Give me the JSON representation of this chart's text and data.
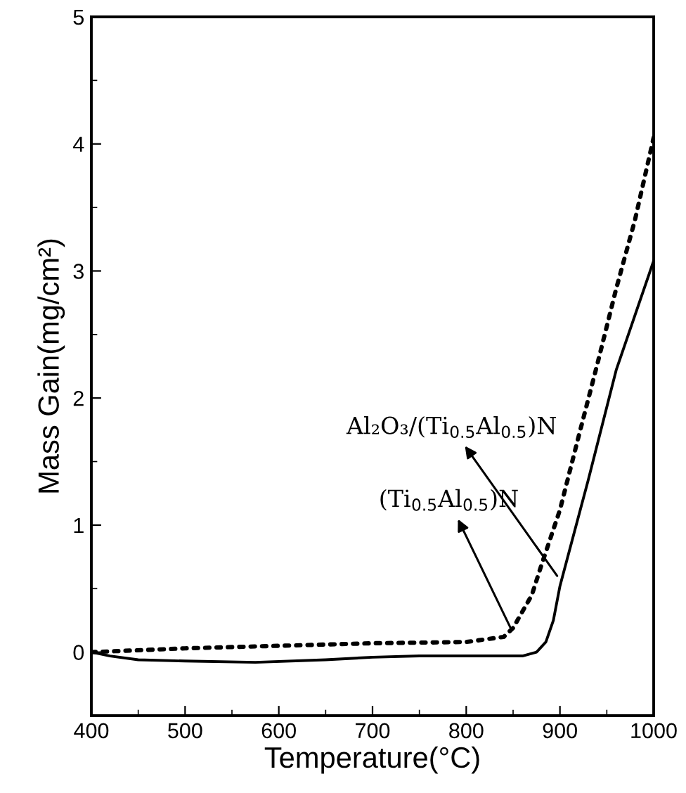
{
  "chart_data": {
    "type": "line",
    "xlabel": "Temperature(°C)",
    "ylabel": "Mass Gain(mg/cm²)",
    "xlim": [
      400,
      1000
    ],
    "xticks": [
      400,
      500,
      600,
      700,
      800,
      900,
      1000
    ],
    "ylim": [
      -0.5,
      5
    ],
    "yticks": [
      0,
      1,
      2,
      3,
      4,
      5
    ],
    "grid": false,
    "legend": false,
    "series": [
      {
        "color": "#000000",
        "line_style": "solid",
        "x": [
          400,
          420,
          450,
          500,
          575,
          650,
          700,
          750,
          800,
          860,
          875,
          885,
          893,
          900,
          930,
          960,
          980,
          1000
        ],
        "values": [
          0,
          -0.03,
          -0.06,
          -0.07,
          -0.08,
          -0.06,
          -0.04,
          -0.03,
          -0.03,
          -0.03,
          0.0,
          0.08,
          0.25,
          0.52,
          1.35,
          2.22,
          2.65,
          3.08
        ]
      },
      {
        "color": "#000000",
        "line_style": "dotted",
        "x": [
          400,
          500,
          600,
          700,
          800,
          840,
          850,
          870,
          880,
          900,
          920,
          940,
          960,
          980,
          1000
        ],
        "values": [
          0.0,
          0.03,
          0.05,
          0.07,
          0.08,
          0.12,
          0.19,
          0.45,
          0.68,
          1.12,
          1.7,
          2.27,
          2.86,
          3.4,
          4.05
        ]
      }
    ],
    "annotations": [
      {
        "text": "Al₂O₃/(Ti$_{0.5}$Al$_{0.5}$)N",
        "x": 897,
        "y": 0.6
      },
      {
        "text": "(Ti$_{0.5}$Al$_{0.5}$)N",
        "x": 848,
        "y": 0.18
      }
    ]
  }
}
